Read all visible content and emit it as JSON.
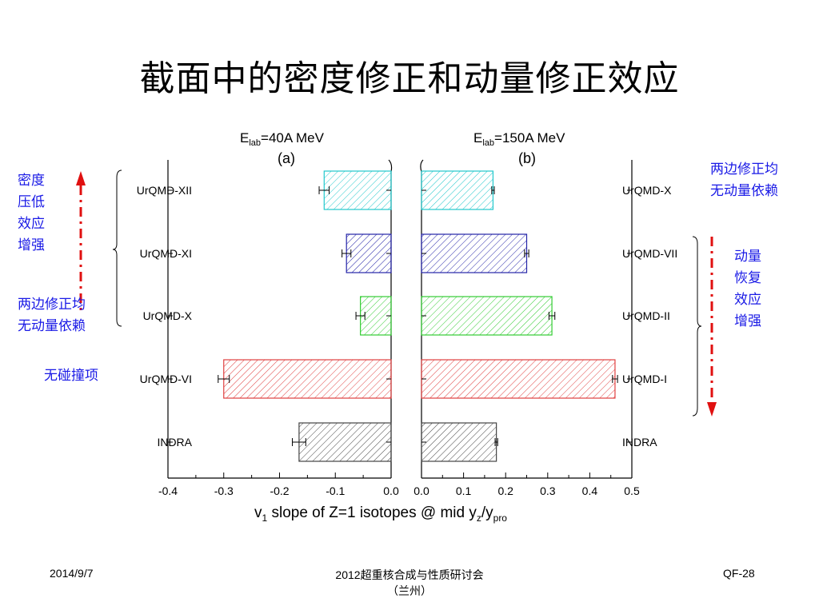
{
  "slide": {
    "title": "截面中的密度修正和动量修正效应"
  },
  "annotations": {
    "left_top": "密度\n压低\n效应\n增强",
    "left_mid": "两边修正均\n无动量依赖",
    "left_bottom": "无碰撞项",
    "right_top": "两边修正均\n无动量依赖",
    "right_mid": "动量\n恢复\n效应\n增强"
  },
  "footer": {
    "date": "2014/9/7",
    "center": "2012超重核合成与性质研讨会\n（兰州）",
    "slide_id": "QF-28"
  },
  "chart_data": [
    {
      "type": "bar",
      "orientation": "horizontal",
      "panel_label": "(a)",
      "energy_label": {
        "prefix": "E",
        "subscript": "lab",
        "suffix": "=40A MeV"
      },
      "categories": [
        "UrQMD-XII",
        "UrQMD-XI",
        "UrQMD-X",
        "UrQMD-VI",
        "INDRA"
      ],
      "values": [
        -0.12,
        -0.08,
        -0.055,
        -0.3,
        -0.165
      ],
      "errors": [
        0.009,
        0.008,
        0.008,
        0.01,
        0.012
      ],
      "colors": [
        "#22c8cc",
        "#2424a8",
        "#33cc33",
        "#e04040",
        "#444444"
      ],
      "xlim": [
        -0.4,
        0.0
      ],
      "xticks": [
        "-0.4",
        "-0.3",
        "-0.2",
        "-0.1",
        "0.0"
      ]
    },
    {
      "type": "bar",
      "orientation": "horizontal",
      "panel_label": "(b)",
      "energy_label": {
        "prefix": "E",
        "subscript": "lab",
        "suffix": "=150A MeV"
      },
      "categories": [
        "UrQMD-X",
        "UrQMD-VII",
        "UrQMD-II",
        "UrQMD-I",
        "INDRA"
      ],
      "values": [
        0.17,
        0.25,
        0.31,
        0.46,
        0.178
      ],
      "errors": [
        0.003,
        0.005,
        0.007,
        0.006,
        0.003
      ],
      "colors": [
        "#22c8cc",
        "#2424a8",
        "#33cc33",
        "#e04040",
        "#444444"
      ],
      "xlim": [
        0.0,
        0.5
      ],
      "xticks": [
        "0.0",
        "0.1",
        "0.2",
        "0.3",
        "0.4",
        "0.5"
      ]
    }
  ],
  "xlabel": {
    "pre": "v",
    "pre_sub": "1",
    "mid": " slope of Z=1 isotopes @ mid y",
    "sub_z": "z",
    "slash": "/y",
    "sub_pro": "pro"
  }
}
